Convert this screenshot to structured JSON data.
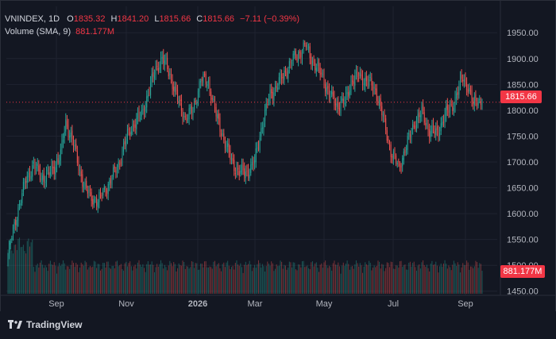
{
  "header": {
    "symbol": "VNINDEX, 1D",
    "o_label": "O",
    "o_value": "1835.32",
    "h_label": "H",
    "h_value": "1841.20",
    "l_label": "L",
    "l_value": "1815.66",
    "c_label": "C",
    "c_value": "1815.66",
    "change": "−7.11 (−0.39%)",
    "volume_label": "Volume (SMA, 9)",
    "volume_value": "881.177M"
  },
  "price_badge": "1815.66",
  "volume_badge": "881.177M",
  "brand": "TradingView",
  "colors": {
    "up": "#26a69a",
    "down": "#ef5350",
    "background": "#131722",
    "grid": "#1f2330",
    "badge": "#f23645"
  },
  "chart_data": {
    "type": "candlestick",
    "y_ticks": [
      "1950.00",
      "1900.00",
      "1850.00",
      "1800.00",
      "1750.00",
      "1700.00",
      "1650.00",
      "1600.00",
      "1550.00",
      "1500.00",
      "1450.00"
    ],
    "ylim": [
      1445,
      1960
    ],
    "x_ticks": [
      "Sep",
      "Nov",
      "2026",
      "Mar",
      "May",
      "Jul",
      "Sep"
    ],
    "last_price": 1815.66,
    "anchors": [
      [
        0,
        1520
      ],
      [
        3,
        1555
      ],
      [
        8,
        1610
      ],
      [
        14,
        1665
      ],
      [
        20,
        1695
      ],
      [
        26,
        1670
      ],
      [
        32,
        1675
      ],
      [
        36,
        1690
      ],
      [
        41,
        1715
      ],
      [
        45,
        1775
      ],
      [
        50,
        1745
      ],
      [
        55,
        1690
      ],
      [
        60,
        1650
      ],
      [
        65,
        1630
      ],
      [
        70,
        1625
      ],
      [
        75,
        1645
      ],
      [
        80,
        1665
      ],
      [
        86,
        1695
      ],
      [
        92,
        1745
      ],
      [
        98,
        1775
      ],
      [
        104,
        1790
      ],
      [
        110,
        1840
      ],
      [
        115,
        1880
      ],
      [
        120,
        1900
      ],
      [
        126,
        1870
      ],
      [
        132,
        1820
      ],
      [
        138,
        1785
      ],
      [
        144,
        1800
      ],
      [
        150,
        1860
      ],
      [
        156,
        1855
      ],
      [
        162,
        1790
      ],
      [
        168,
        1745
      ],
      [
        174,
        1700
      ],
      [
        180,
        1680
      ],
      [
        186,
        1680
      ],
      [
        192,
        1700
      ],
      [
        198,
        1775
      ],
      [
        204,
        1830
      ],
      [
        210,
        1850
      ],
      [
        216,
        1875
      ],
      [
        222,
        1900
      ],
      [
        228,
        1915
      ],
      [
        232,
        1925
      ],
      [
        238,
        1890
      ],
      [
        244,
        1870
      ],
      [
        250,
        1830
      ],
      [
        256,
        1810
      ],
      [
        262,
        1815
      ],
      [
        268,
        1860
      ],
      [
        274,
        1865
      ],
      [
        280,
        1855
      ],
      [
        286,
        1840
      ],
      [
        292,
        1785
      ],
      [
        298,
        1720
      ],
      [
        304,
        1690
      ],
      [
        310,
        1730
      ],
      [
        316,
        1775
      ],
      [
        322,
        1795
      ],
      [
        328,
        1760
      ],
      [
        334,
        1755
      ],
      [
        340,
        1790
      ],
      [
        346,
        1810
      ],
      [
        350,
        1835
      ],
      [
        354,
        1865
      ],
      [
        358,
        1845
      ],
      [
        362,
        1810
      ],
      [
        365,
        1822
      ],
      [
        369,
        1816
      ]
    ],
    "volume_ylim": [
      0,
      2200
    ],
    "volume_sma": 881.177
  }
}
